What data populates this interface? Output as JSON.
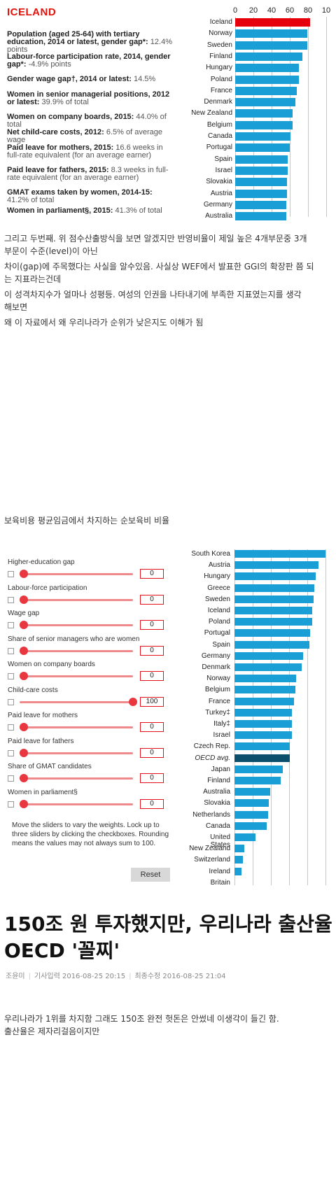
{
  "iceland_panel": {
    "title": "ICELAND",
    "indicators": [
      {
        "label": "Population (aged 25-64) with tertiary education, 2014 or latest, gender gap*:",
        "value": "12.4% points"
      },
      {
        "label": "Labour-force participation rate, 2014, gender gap*:",
        "value": "-4.9% points"
      },
      {
        "label": "Gender wage gap†, 2014 or latest:",
        "value": "14.5%"
      },
      {
        "label": "Women in senior managerial positions, 2012 or latest:",
        "value": "39.9% of total"
      },
      {
        "label": "Women on company boards, 2015:",
        "value": "44.0% of total"
      },
      {
        "label": "Net child-care costs, 2012:",
        "value": "6.5% of average wage"
      },
      {
        "label": "Paid leave for mothers, 2015:",
        "value": "16.6 weeks in full-rate equivalent (for an average earner)"
      },
      {
        "label": "Paid leave for fathers, 2015:",
        "value": "8.3 weeks in full-rate equivalent (for an average earner)"
      },
      {
        "label": "GMAT exams taken by women, 2014-15:",
        "value": "41.2% of total"
      },
      {
        "label": "Women in parliament§, 2015:",
        "value": "41.3% of total"
      }
    ]
  },
  "chart_data": [
    {
      "type": "bar",
      "orientation": "horizontal",
      "highlight": "Iceland",
      "highlight_color": "#e5000c",
      "bar_color": "#1a9ed6",
      "xticks": [
        "0",
        "20",
        "40",
        "60",
        "80",
        "10"
      ],
      "xlim": [
        0,
        100
      ],
      "grid": true,
      "categories": [
        "Iceland",
        "Norway",
        "Sweden",
        "Finland",
        "Hungary",
        "Poland",
        "France",
        "Denmark",
        "New Zealand",
        "Belgium",
        "Canada",
        "Portugal",
        "Spain",
        "Israel",
        "Slovakia",
        "Austria",
        "Germany",
        "Australia"
      ],
      "values": [
        82,
        79,
        79,
        74,
        70,
        70,
        68,
        66,
        63,
        63,
        61,
        60,
        58,
        58,
        57,
        57,
        56,
        56
      ]
    },
    {
      "type": "bar",
      "orientation": "horizontal",
      "bar_color": "#1a9ed6",
      "avg_color": "#0b4f6c",
      "grid": true,
      "categories": [
        "South Korea",
        "Austria",
        "Hungary",
        "Greece",
        "Sweden",
        "Iceland",
        "Poland",
        "Portugal",
        "Spain",
        "Germany",
        "Denmark",
        "Norway",
        "Belgium",
        "France",
        "Turkey‡",
        "Italy‡",
        "Israel",
        "Czech Rep.",
        "OECD avg.",
        "Japan",
        "Finland",
        "Australia",
        "Slovakia",
        "Netherlands",
        "Canada",
        "United States",
        "New Zealand",
        "Switzerland",
        "Ireland",
        "Britain"
      ],
      "values": [
        100,
        92,
        89,
        88,
        87,
        85,
        85,
        83,
        82,
        75,
        74,
        68,
        67,
        65,
        63,
        63,
        63,
        61,
        61,
        53,
        51,
        39,
        38,
        37,
        35,
        23,
        11,
        9,
        8,
        0
      ]
    }
  ],
  "post_text": {
    "line1": "그리고 두번째. 위 점수산출방식을 보면 알겠지만 반영비율이 제일 높은 4개부문중 3개",
    "line2": "부문이 수준(level)이 아닌",
    "line3": "차이(gap)에 주목했다는 사실을 알수있음. 사실상 WEF에서 발표한 GGI의 확장판 쯤 되",
    "line4": "는 지표라는건데",
    "line5": "이 성격차지수가 얼마나 성평등. 여성의 인권을 나타내기에 부족한 지표였는지를 생각",
    "line6": "해보면",
    "line7": "왜 이 자료에서 왜 우리나라가 순위가 낮은지도 이해가 됨",
    "caption": "보육비용 평균임금에서 차지하는 순보육비 비율"
  },
  "sliders": {
    "items": [
      {
        "label": "Higher-education gap",
        "value": "0"
      },
      {
        "label": "Labour-force participation",
        "value": "0"
      },
      {
        "label": "Wage gap",
        "value": "0"
      },
      {
        "label": "Share of senior managers who are women",
        "value": "0"
      },
      {
        "label": "Women on company boards",
        "value": "0"
      },
      {
        "label": "Child-care costs",
        "value": "100"
      },
      {
        "label": "Paid leave for mothers",
        "value": "0"
      },
      {
        "label": "Paid leave for fathers",
        "value": "0"
      },
      {
        "label": "Share of GMAT candidates",
        "value": "0"
      },
      {
        "label": "Women in parliament§",
        "value": "0"
      }
    ],
    "help": "Move the sliders to vary the weights. Lock up to three sliders by clicking the checkboxes. Rounding means the values may not always sum to 100.",
    "reset_label": "Reset"
  },
  "article": {
    "headline": "150조 원 투자했지만, 우리나라 출산율 OECD '꼴찌'",
    "author": "조윤미",
    "published": "기사입력 2016-08-25 20:15",
    "modified": "최종수정 2016-08-25 21:04",
    "comment1": "우리나라가 1위를 차지함 그래도 150조 완전 헛돈은 안썼네 이생각이 들긴 함.",
    "comment2": "출산율은 제자리걸음이지만"
  }
}
